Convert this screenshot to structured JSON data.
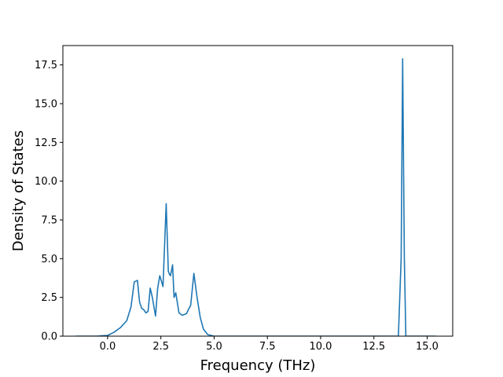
{
  "chart_data": {
    "type": "line",
    "title": "",
    "xlabel": "Frequency (THz)",
    "ylabel": "Density of States",
    "xlim": [
      -2.1,
      16.2
    ],
    "ylim": [
      0,
      18.75
    ],
    "xticks": [
      0.0,
      2.5,
      5.0,
      7.5,
      10.0,
      12.5,
      15.0
    ],
    "xtick_labels": [
      "0.0",
      "2.5",
      "5.0",
      "7.5",
      "10.0",
      "12.5",
      "15.0"
    ],
    "yticks": [
      0.0,
      2.5,
      5.0,
      7.5,
      10.0,
      12.5,
      15.0,
      17.5
    ],
    "ytick_labels": [
      "0.0",
      "2.5",
      "5.0",
      "7.5",
      "10.0",
      "12.5",
      "15.0",
      "17.5"
    ],
    "grid": false,
    "legend": "none",
    "series": [
      {
        "color": "#1f77b4",
        "x": [
          -1.5,
          -0.5,
          0.0,
          0.3,
          0.6,
          0.9,
          1.1,
          1.25,
          1.4,
          1.5,
          1.6,
          1.7,
          1.8,
          1.9,
          2.0,
          2.1,
          2.25,
          2.35,
          2.45,
          2.6,
          2.75,
          2.85,
          2.9,
          2.95,
          3.05,
          3.12,
          3.2,
          3.35,
          3.5,
          3.7,
          3.9,
          4.05,
          4.2,
          4.35,
          4.5,
          4.7,
          5.0,
          8.0,
          12.0,
          13.65,
          13.78,
          13.85,
          13.93,
          14.0,
          14.1,
          15.4
        ],
        "y": [
          0,
          0,
          0.05,
          0.25,
          0.55,
          1.0,
          1.9,
          3.5,
          3.6,
          2.2,
          1.8,
          1.7,
          1.5,
          1.6,
          3.1,
          2.5,
          1.3,
          3.1,
          3.9,
          3.2,
          8.55,
          4.2,
          4.0,
          3.9,
          4.6,
          2.5,
          2.8,
          1.5,
          1.35,
          1.45,
          2.0,
          4.05,
          2.5,
          1.2,
          0.45,
          0.1,
          0.0,
          0.0,
          0.0,
          0.0,
          5.0,
          17.9,
          5.0,
          0.0,
          0.0,
          0.0
        ]
      }
    ]
  }
}
